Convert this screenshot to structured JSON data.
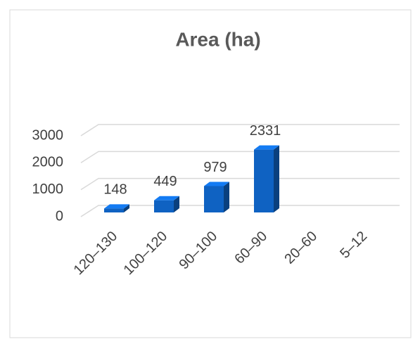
{
  "chart_data": {
    "type": "bar3d",
    "title": "Area (ha)",
    "categories": [
      "120–130",
      "100–120",
      "90–100",
      "60–90",
      "20–60",
      "5–12"
    ],
    "values": [
      148,
      449,
      979,
      2331,
      null,
      null
    ],
    "color": "#0f62c2",
    "ylim": [
      0,
      3000
    ],
    "yticks": [
      0,
      1000,
      2000,
      3000
    ],
    "grid": true
  }
}
